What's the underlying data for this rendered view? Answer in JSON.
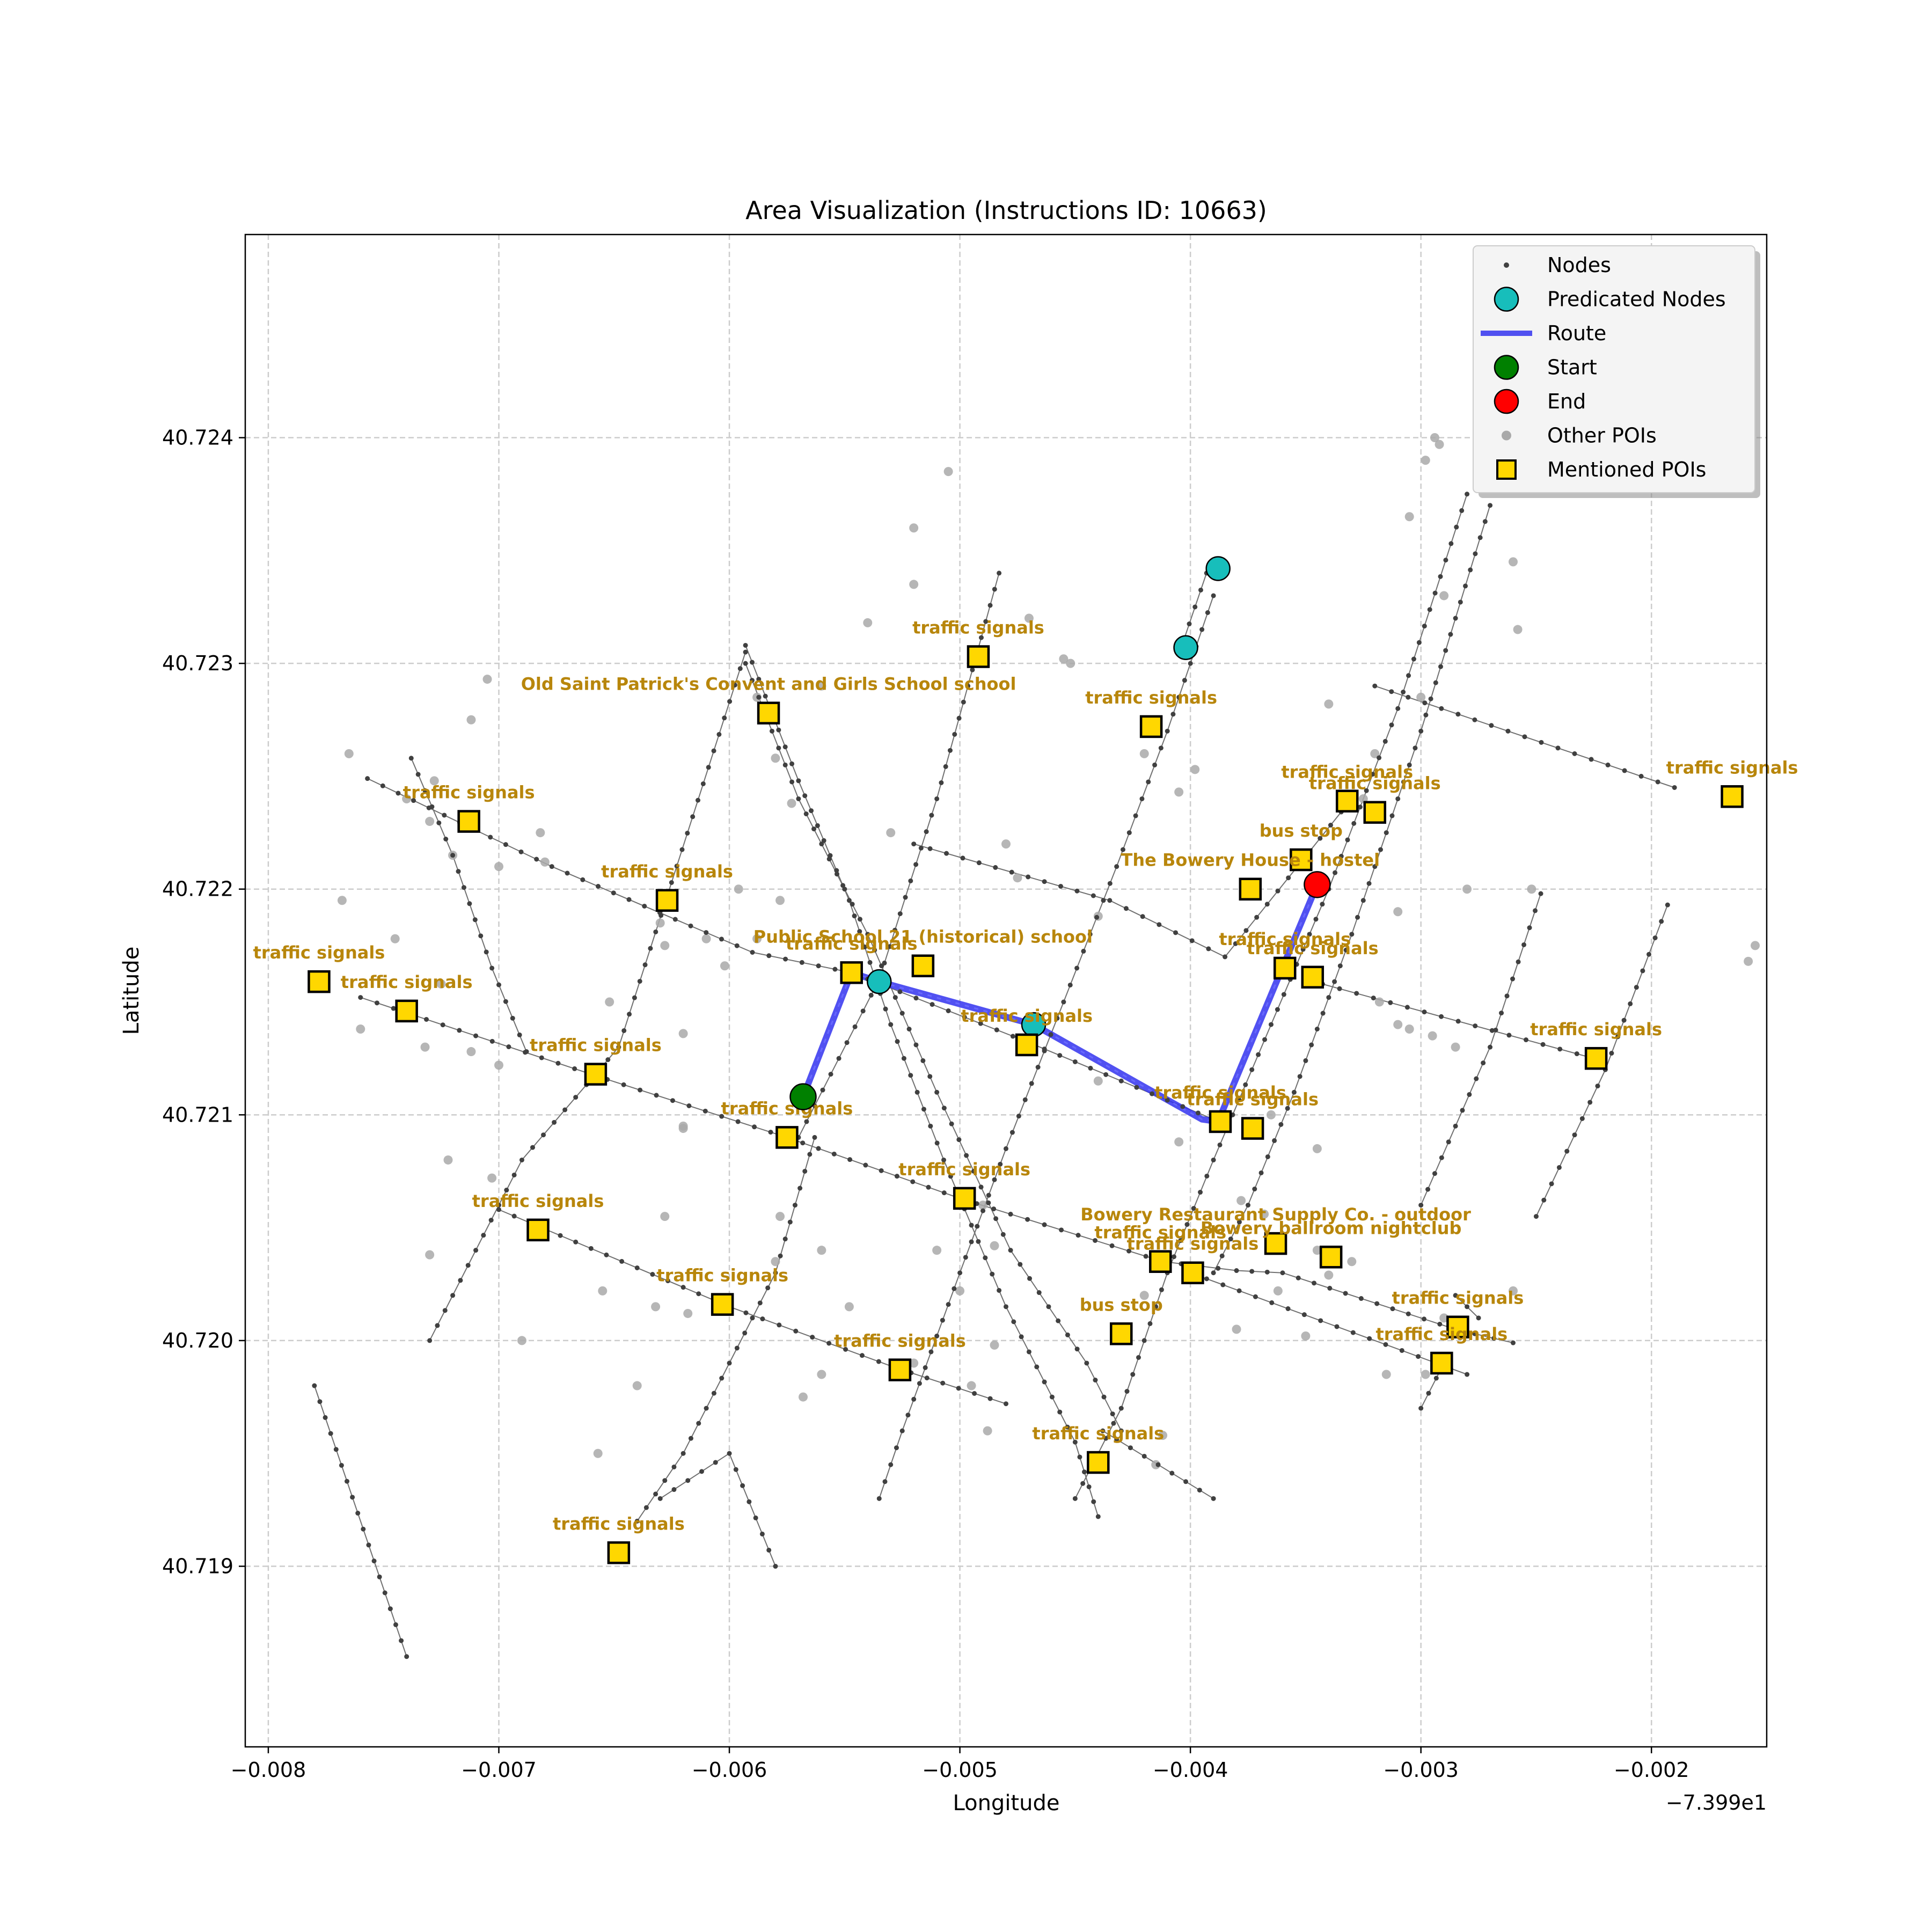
{
  "chart_data": {
    "type": "scatter",
    "title": "Area Visualization (Instructions ID: 10663)",
    "xlabel": "Longitude",
    "ylabel": "Latitude",
    "x_offset_label": "−7.399e1",
    "xlim": [
      -0.0081,
      -0.0015
    ],
    "ylim": [
      40.7182,
      40.7249
    ],
    "xticks": [
      -0.008,
      -0.007,
      -0.006,
      -0.005,
      -0.004,
      -0.003,
      -0.002
    ],
    "xtick_labels": [
      "−0.008",
      "−0.007",
      "−0.006",
      "−0.005",
      "−0.004",
      "−0.003",
      "−0.002"
    ],
    "yticks": [
      40.719,
      40.72,
      40.721,
      40.722,
      40.723,
      40.724
    ],
    "ytick_labels": [
      "40.719",
      "40.720",
      "40.721",
      "40.722",
      "40.723",
      "40.724"
    ],
    "grid": true,
    "legend_position": "top-right",
    "legend": [
      {
        "label": "Nodes",
        "kind": "node"
      },
      {
        "label": "Predicated Nodes",
        "kind": "predicated"
      },
      {
        "label": "Route",
        "kind": "route"
      },
      {
        "label": "Start",
        "kind": "start"
      },
      {
        "label": "End",
        "kind": "end"
      },
      {
        "label": "Other POIs",
        "kind": "other"
      },
      {
        "label": "Mentioned POIs",
        "kind": "mentioned"
      }
    ],
    "colors": {
      "node": "#404040",
      "edge": "#707070",
      "predicated": "#17bebb",
      "route": "#3333ee",
      "start": "#008000",
      "end": "#ff0000",
      "other_poi": "#a9a9a9",
      "mentioned_poi": "#ffd700",
      "poi_label": "#b8860b",
      "grid": "#cccccc"
    },
    "streets": [
      [
        [
          -0.00757,
          40.72249
        ],
        [
          -0.00677,
          40.7221
        ],
        [
          -0.0059,
          40.72172
        ],
        [
          -0.00547,
          40.72163
        ],
        [
          -0.0047,
          40.72132
        ],
        [
          -0.0039,
          40.72098
        ]
      ],
      [
        [
          -0.0076,
          40.72152
        ],
        [
          -0.0066,
          40.72118
        ],
        [
          -0.00575,
          40.7209
        ],
        [
          -0.005,
          40.72063
        ],
        [
          -0.00412,
          40.72035
        ],
        [
          -0.0038,
          40.72031
        ],
        [
          -0.0036,
          40.7203
        ],
        [
          -0.00285,
          40.72005
        ],
        [
          -0.0026,
          40.71999
        ]
      ],
      [
        [
          -0.007,
          40.72058
        ],
        [
          -0.006,
          40.72015
        ],
        [
          -0.00528,
          40.71988
        ],
        [
          -0.0048,
          40.71972
        ]
      ],
      [
        [
          -0.00593,
          40.72308
        ],
        [
          -0.0057,
          40.72248
        ],
        [
          -0.00548,
          40.72195
        ],
        [
          -0.0053,
          40.7214
        ],
        [
          -0.00507,
          40.7208
        ],
        [
          -0.0048,
          40.72015
        ],
        [
          -0.0045,
          40.71955
        ],
        [
          -0.0044,
          40.71922
        ]
      ],
      [
        [
          -0.00738,
          40.72258
        ],
        [
          -0.0072,
          40.72215
        ],
        [
          -0.00703,
          40.72165
        ],
        [
          -0.00688,
          40.72128
        ]
      ],
      [
        [
          -0.00593,
          40.723
        ],
        [
          -0.0057,
          40.7224
        ],
        [
          -0.0054,
          40.7218
        ],
        [
          -0.0051,
          40.7211
        ],
        [
          -0.00478,
          40.7204
        ],
        [
          -0.00445,
          40.7199
        ],
        [
          -0.0043,
          40.7196
        ]
      ],
      [
        [
          -0.0078,
          40.7198
        ],
        [
          -0.0074,
          40.7186
        ]
      ],
      [
        [
          -0.00593,
          40.72305
        ],
        [
          -0.00648,
          40.7213
        ],
        [
          -0.0069,
          40.7208
        ],
        [
          -0.0073,
          40.72
        ]
      ],
      [
        [
          -0.00563,
          40.7209
        ],
        [
          -0.0058,
          40.7203
        ],
        [
          -0.006,
          40.7199
        ],
        [
          -0.0062,
          40.7195
        ],
        [
          -0.0064,
          40.7192
        ]
      ],
      [
        [
          -0.00483,
          40.7234
        ],
        [
          -0.0051,
          40.7224
        ],
        [
          -0.00535,
          40.7216
        ],
        [
          -0.0057,
          40.7209
        ]
      ],
      [
        [
          -0.0032,
          40.7229
        ],
        [
          -0.0019,
          40.72245
        ]
      ],
      [
        [
          -0.0052,
          40.7222
        ],
        [
          -0.00435,
          40.72195
        ],
        [
          -0.00385,
          40.7217
        ],
        [
          -0.0033,
          40.7224
        ]
      ],
      [
        [
          -0.0039,
          40.7233
        ],
        [
          -0.0041,
          40.7227
        ],
        [
          -0.00432,
          40.7221
        ],
        [
          -0.00455,
          40.7215
        ],
        [
          -0.0048,
          40.72085
        ],
        [
          -0.005,
          40.7203
        ],
        [
          -0.00525,
          40.7196
        ],
        [
          -0.00535,
          40.7193
        ]
      ],
      [
        [
          -0.00393,
          40.7234
        ],
        [
          -0.00403,
          40.7231
        ]
      ],
      [
        [
          -0.0028,
          40.72375
        ],
        [
          -0.0031,
          40.7228
        ],
        [
          -0.0034,
          40.722
        ],
        [
          -0.00365,
          40.7214
        ],
        [
          -0.0039,
          40.7208
        ],
        [
          -0.0041,
          40.7203
        ],
        [
          -0.0043,
          40.7197
        ],
        [
          -0.0045,
          40.7193
        ]
      ],
      [
        [
          -0.0027,
          40.7237
        ],
        [
          -0.003,
          40.7227
        ],
        [
          -0.0033,
          40.7218
        ],
        [
          -0.00355,
          40.7211
        ],
        [
          -0.00375,
          40.7206
        ],
        [
          -0.0039,
          40.7203
        ]
      ],
      [
        [
          -0.0058,
          40.719
        ],
        [
          -0.006,
          40.7195
        ],
        [
          -0.0063,
          40.7193
        ]
      ],
      [
        [
          -0.0035,
          40.7216
        ],
        [
          -0.00225,
          40.72125
        ]
      ],
      [
        [
          -0.00248,
          40.72198
        ],
        [
          -0.0027,
          40.7213
        ],
        [
          -0.003,
          40.7206
        ]
      ],
      [
        [
          -0.00193,
          40.72193
        ],
        [
          -0.0022,
          40.7212
        ],
        [
          -0.0025,
          40.72055
        ]
      ],
      [
        [
          -0.004,
          40.7203
        ],
        [
          -0.0028,
          40.71985
        ]
      ],
      [
        [
          -0.0029,
          40.7199
        ],
        [
          -0.003,
          40.7197
        ]
      ],
      [
        [
          -0.00285,
          40.7202
        ],
        [
          -0.00275,
          40.7201
        ]
      ],
      [
        [
          -0.00438,
          40.7196
        ],
        [
          -0.0039,
          40.7193
        ]
      ]
    ],
    "route": [
      [
        -0.00568,
        40.72108
      ],
      [
        -0.00547,
        40.72163
      ],
      [
        -0.00535,
        40.72159
      ],
      [
        -0.00468,
        40.7214
      ],
      [
        -0.00395,
        40.72098
      ],
      [
        -0.00388,
        40.72097
      ],
      [
        -0.00345,
        40.72202
      ]
    ],
    "start": [
      -0.00568,
      40.72108
    ],
    "end": [
      -0.00345,
      40.72202
    ],
    "predicated_nodes": [
      [
        -0.00388,
        40.72342
      ],
      [
        -0.00402,
        40.72307
      ],
      [
        -0.00535,
        40.72159
      ],
      [
        -0.00468,
        40.7214
      ]
    ],
    "other_pois": [
      [
        -0.00765,
        40.7226
      ],
      [
        -0.0074,
        40.7224
      ],
      [
        -0.00728,
        40.72248
      ],
      [
        -0.0073,
        40.7223
      ],
      [
        -0.0072,
        40.72215
      ],
      [
        -0.007,
        40.7221
      ],
      [
        -0.0068,
        40.72212
      ],
      [
        -0.00682,
        40.72225
      ],
      [
        -0.00705,
        40.72293
      ],
      [
        -0.00712,
        40.72275
      ],
      [
        -0.00768,
        40.72195
      ],
      [
        -0.00745,
        40.72178
      ],
      [
        -0.00725,
        40.72158
      ],
      [
        -0.0076,
        40.72138
      ],
      [
        -0.00738,
        40.72145
      ],
      [
        -0.00732,
        40.7213
      ],
      [
        -0.007,
        40.72122
      ],
      [
        -0.00712,
        40.72128
      ],
      [
        -0.00722,
        40.7208
      ],
      [
        -0.00703,
        40.72072
      ],
      [
        -0.0073,
        40.72038
      ],
      [
        -0.0069,
        40.72
      ],
      [
        -0.00658,
        40.72118
      ],
      [
        -0.00652,
        40.7215
      ],
      [
        -0.0063,
        40.72185
      ],
      [
        -0.00628,
        40.72175
      ],
      [
        -0.0062,
        40.72136
      ],
      [
        -0.0061,
        40.72178
      ],
      [
        -0.00602,
        40.72166
      ],
      [
        -0.00596,
        40.722
      ],
      [
        -0.00588,
        40.72178
      ],
      [
        -0.00578,
        40.72195
      ],
      [
        -0.0062,
        40.72095
      ],
      [
        -0.0062,
        40.72094
      ],
      [
        -0.00628,
        40.72055
      ],
      [
        -0.00632,
        40.72015
      ],
      [
        -0.00618,
        40.72012
      ],
      [
        -0.0064,
        40.7198
      ],
      [
        -0.00655,
        40.72022
      ],
      [
        -0.00657,
        40.7195
      ],
      [
        -0.00573,
        40.72238
      ],
      [
        -0.0058,
        40.72258
      ],
      [
        -0.00588,
        40.72285
      ],
      [
        -0.0056,
        40.7229
      ],
      [
        -0.0054,
        40.72318
      ],
      [
        -0.00578,
        40.72055
      ],
      [
        -0.0056,
        40.7204
      ],
      [
        -0.00548,
        40.72015
      ],
      [
        -0.0056,
        40.71985
      ],
      [
        -0.00568,
        40.71975
      ],
      [
        -0.0058,
        40.72035
      ],
      [
        -0.0052,
        40.7236
      ],
      [
        -0.0052,
        40.72335
      ],
      [
        -0.00505,
        40.72385
      ],
      [
        -0.0047,
        40.7232
      ],
      [
        -0.00455,
        40.72302
      ],
      [
        -0.00452,
        40.723
      ],
      [
        -0.0053,
        40.72225
      ],
      [
        -0.0048,
        40.7222
      ],
      [
        -0.00475,
        40.72205
      ],
      [
        -0.0044,
        40.72188
      ],
      [
        -0.00405,
        40.72243
      ],
      [
        -0.0042,
        40.7226
      ],
      [
        -0.00398,
        40.72253
      ],
      [
        -0.0044,
        40.72115
      ],
      [
        -0.0049,
        40.7206
      ],
      [
        -0.00485,
        40.72042
      ],
      [
        -0.005,
        40.72022
      ],
      [
        -0.00495,
        40.7198
      ],
      [
        -0.00485,
        40.71998
      ],
      [
        -0.0051,
        40.7204
      ],
      [
        -0.0052,
        40.7199
      ],
      [
        -0.00488,
        40.7196
      ],
      [
        -0.00405,
        40.72088
      ],
      [
        -0.0042,
        40.7202
      ],
      [
        -0.0038,
        40.72005
      ],
      [
        -0.00378,
        40.72062
      ],
      [
        -0.00368,
        40.72056
      ],
      [
        -0.00362,
        40.72022
      ],
      [
        -0.0035,
        40.72002
      ],
      [
        -0.00345,
        40.7204
      ],
      [
        -0.0034,
        40.72029
      ],
      [
        -0.0033,
        40.72035
      ],
      [
        -0.00415,
        40.71945
      ],
      [
        -0.00412,
        40.71958
      ],
      [
        -0.00365,
        40.721
      ],
      [
        -0.00345,
        40.72085
      ],
      [
        -0.0034,
        40.72282
      ],
      [
        -0.0031,
        40.7219
      ],
      [
        -0.00318,
        40.7215
      ],
      [
        -0.00305,
        40.72138
      ],
      [
        -0.0031,
        40.7214
      ],
      [
        -0.00295,
        40.72135
      ],
      [
        -0.00285,
        40.7213
      ],
      [
        -0.003,
        40.72285
      ],
      [
        -0.0029,
        40.7233
      ],
      [
        -0.0032,
        40.7226
      ],
      [
        -0.00325,
        40.7224
      ],
      [
        -0.00305,
        40.72365
      ],
      [
        -0.00298,
        40.7239
      ],
      [
        -0.00292,
        40.72397
      ],
      [
        -0.00294,
        40.724
      ],
      [
        -0.0026,
        40.72345
      ],
      [
        -0.00258,
        40.72315
      ],
      [
        -0.0028,
        40.722
      ],
      [
        -0.00252,
        40.722
      ],
      [
        -0.00158,
        40.72168
      ],
      [
        -0.00155,
        40.72175
      ],
      [
        -0.0026,
        40.72022
      ],
      [
        -0.00298,
        40.71985
      ],
      [
        -0.00315,
        40.71985
      ],
      [
        -0.0029,
        40.7201
      ]
    ],
    "mentioned_pois": [
      {
        "x": -0.00492,
        "y": 40.72303,
        "label": "traffic signals"
      },
      {
        "x": -0.00583,
        "y": 40.72278,
        "label": "Old Saint Patrick's Convent and Girls School school"
      },
      {
        "x": -0.00417,
        "y": 40.72272,
        "label": "traffic signals"
      },
      {
        "x": -0.00713,
        "y": 40.7223,
        "label": "traffic signals"
      },
      {
        "x": -0.00627,
        "y": 40.72195,
        "label": "traffic signals"
      },
      {
        "x": -0.00332,
        "y": 40.72239,
        "label": "traffic signals"
      },
      {
        "x": -0.0032,
        "y": 40.72234,
        "label": "traffic signals"
      },
      {
        "x": -0.00165,
        "y": 40.72241,
        "label": "traffic signals"
      },
      {
        "x": -0.00352,
        "y": 40.72213,
        "label": "bus stop"
      },
      {
        "x": -0.00374,
        "y": 40.722,
        "label": "The Bowery House - hostel"
      },
      {
        "x": -0.00778,
        "y": 40.72159,
        "label": "traffic signals"
      },
      {
        "x": -0.0074,
        "y": 40.72146,
        "label": "traffic signals"
      },
      {
        "x": -0.00547,
        "y": 40.72163,
        "label": "traffic signals"
      },
      {
        "x": -0.00516,
        "y": 40.72166,
        "label": "Public School 21 (historical) school"
      },
      {
        "x": -0.00359,
        "y": 40.72165,
        "label": "traffic signals"
      },
      {
        "x": -0.00347,
        "y": 40.72161,
        "label": "traffic signals"
      },
      {
        "x": -0.00471,
        "y": 40.72131,
        "label": "traffic signals"
      },
      {
        "x": -0.00658,
        "y": 40.72118,
        "label": "traffic signals"
      },
      {
        "x": -0.00224,
        "y": 40.72125,
        "label": "traffic signals"
      },
      {
        "x": -0.00387,
        "y": 40.72097,
        "label": "traffic signals"
      },
      {
        "x": -0.00373,
        "y": 40.72094,
        "label": "traffic signals"
      },
      {
        "x": -0.00575,
        "y": 40.7209,
        "label": "traffic signals"
      },
      {
        "x": -0.00498,
        "y": 40.72063,
        "label": "traffic signals"
      },
      {
        "x": -0.00683,
        "y": 40.72049,
        "label": "traffic signals"
      },
      {
        "x": -0.00363,
        "y": 40.72043,
        "label": "Bowery Restaurant Supply Co. - outdoor"
      },
      {
        "x": -0.00339,
        "y": 40.72037,
        "label": "Bowery ballroom nightclub"
      },
      {
        "x": -0.00413,
        "y": 40.72035,
        "label": "traffic signals"
      },
      {
        "x": -0.00399,
        "y": 40.7203,
        "label": "traffic signals"
      },
      {
        "x": -0.00603,
        "y": 40.72016,
        "label": "traffic signals"
      },
      {
        "x": -0.00284,
        "y": 40.72006,
        "label": "traffic signals"
      },
      {
        "x": -0.0043,
        "y": 40.72003,
        "label": "bus stop"
      },
      {
        "x": -0.00291,
        "y": 40.7199,
        "label": "traffic signals"
      },
      {
        "x": -0.00526,
        "y": 40.71987,
        "label": "traffic signals"
      },
      {
        "x": -0.0044,
        "y": 40.71946,
        "label": "traffic signals"
      },
      {
        "x": -0.00648,
        "y": 40.71906,
        "label": "traffic signals"
      }
    ]
  }
}
